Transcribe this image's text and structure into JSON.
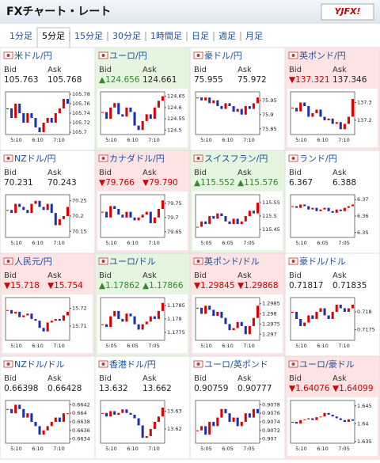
{
  "header": {
    "title": "FXチャート・レート",
    "logo": "YJFX!"
  },
  "tabs": [
    "1分足",
    "5分足",
    "15分足",
    "30分足",
    "1時間足",
    "日足",
    "週足",
    "月足"
  ],
  "selected_tab": 1,
  "labels": {
    "bid": "Bid",
    "ask": "Ask"
  },
  "panels": [
    {
      "name": "米ドル/円",
      "trend": "none",
      "bid": "105.763",
      "ask": "105.768",
      "chart": {
        "ylim": [
          105.695,
          105.785
        ],
        "yticks": [
          105.78,
          105.76,
          105.74,
          105.72,
          105.7
        ],
        "xticks": [
          "5:10",
          "6:10",
          "7:10"
        ],
        "values": [
          105.75,
          105.73,
          105.76,
          105.74,
          105.72,
          105.74,
          105.73,
          105.71,
          105.7,
          105.72,
          105.73,
          105.72,
          105.74,
          105.75,
          105.77,
          105.76
        ]
      }
    },
    {
      "name": "ユーロ/円",
      "trend": "up",
      "bid": "▲124.656",
      "ask": "124.661",
      "chart": {
        "ylim": [
          124.48,
          124.67
        ],
        "yticks": [
          124.65,
          124.6,
          124.55,
          124.5
        ],
        "xticks": [
          "5:10",
          "6:10",
          "7:10"
        ],
        "values": [
          124.58,
          124.55,
          124.6,
          124.62,
          124.57,
          124.56,
          124.6,
          124.58,
          124.52,
          124.5,
          124.54,
          124.57,
          124.55,
          124.6,
          124.63,
          124.65
        ]
      }
    },
    {
      "name": "豪ドル/円",
      "trend": "none",
      "bid": "75.955",
      "ask": "75.972",
      "chart": {
        "ylim": [
          75.83,
          75.98
        ],
        "yticks": [
          75.95,
          75.9,
          75.85
        ],
        "xticks": [
          "5:10",
          "6:10",
          "7:10"
        ],
        "values": [
          75.96,
          75.95,
          75.96,
          75.94,
          75.95,
          75.93,
          75.92,
          75.94,
          75.93,
          75.91,
          75.92,
          75.9,
          75.93,
          75.92,
          75.94,
          75.96
        ]
      }
    },
    {
      "name": "英ポンド/円",
      "trend": "down",
      "bid": "▼137.321",
      "ask": "137.346",
      "chart": {
        "ylim": [
          137.12,
          137.36
        ],
        "yticks": [
          137.3,
          137.2
        ],
        "xticks": [
          "5:10",
          "6:10",
          "7:10"
        ],
        "values": [
          137.27,
          137.25,
          137.3,
          137.28,
          137.22,
          137.24,
          137.26,
          137.22,
          137.2,
          137.21,
          137.18,
          137.19,
          137.15,
          137.18,
          137.22,
          137.32
        ]
      }
    },
    {
      "name": "NZドル/円",
      "trend": "none",
      "bid": "70.231",
      "ask": "70.243",
      "chart": {
        "ylim": [
          70.13,
          70.27
        ],
        "yticks": [
          70.25,
          70.2,
          70.15
        ],
        "xticks": [
          "5:10",
          "6:10",
          "7:10"
        ],
        "values": [
          70.22,
          70.21,
          70.24,
          70.23,
          70.22,
          70.21,
          70.24,
          70.25,
          70.23,
          70.22,
          70.24,
          70.21,
          70.17,
          70.19,
          70.2,
          70.23
        ]
      }
    },
    {
      "name": "カナダドル/円",
      "trend": "down",
      "bid": "▼79.766",
      "ask": "▼79.790",
      "chart": {
        "ylim": [
          79.63,
          79.78
        ],
        "yticks": [
          79.75,
          79.7,
          79.65
        ],
        "xticks": [
          "5:10",
          "6:10",
          "7:10"
        ],
        "values": [
          79.72,
          79.7,
          79.74,
          79.73,
          79.71,
          79.7,
          79.72,
          79.7,
          79.69,
          79.7,
          79.71,
          79.72,
          79.68,
          79.7,
          79.73,
          79.76
        ]
      }
    },
    {
      "name": "スイスフラン/円",
      "trend": "up",
      "bid": "▲115.552",
      "ask": "▲115.576",
      "chart": {
        "ylim": [
          115.42,
          115.58
        ],
        "yticks": [
          115.55,
          115.5,
          115.45
        ],
        "xticks": [
          "5:05",
          "6:05",
          "7:05"
        ],
        "values": [
          115.46,
          115.48,
          115.47,
          115.5,
          115.49,
          115.51,
          115.5,
          115.48,
          115.47,
          115.49,
          115.47,
          115.48,
          115.5,
          115.52,
          115.51,
          115.55
        ]
      }
    },
    {
      "name": "ランド/円",
      "trend": "none",
      "bid": "6.367",
      "ask": "6.388",
      "chart": {
        "ylim": [
          6.347,
          6.373
        ],
        "yticks": [
          6.37,
          6.36,
          6.35
        ],
        "xticks": [
          "5:10",
          "6:05",
          "7:05"
        ],
        "values": [
          6.366,
          6.365,
          6.367,
          6.366,
          6.364,
          6.365,
          6.363,
          6.364,
          6.365,
          6.363,
          6.362,
          6.364,
          6.363,
          6.365,
          6.366,
          6.367
        ]
      }
    },
    {
      "name": "人民元/円",
      "trend": "down",
      "bid": "▼15.718",
      "ask": "▼15.754",
      "chart": {
        "ylim": [
          15.702,
          15.726
        ],
        "yticks": [
          15.72,
          15.71
        ],
        "xticks": [
          "5:10",
          "6:10",
          "7:10"
        ],
        "values": [
          15.719,
          15.717,
          15.718,
          15.715,
          15.716,
          15.717,
          15.714,
          15.713,
          15.709,
          15.707,
          15.712,
          15.713,
          15.714,
          15.713,
          15.716,
          15.718
        ]
      }
    },
    {
      "name": "ユーロ/ドル",
      "trend": "up",
      "bid": "▲1.17862",
      "ask": "▲1.17866",
      "chart": {
        "ylim": [
          1.1772,
          1.1788
        ],
        "yticks": [
          1.1785,
          1.178,
          1.1775
        ],
        "xticks": [
          "5:05",
          "6:05",
          "7:05"
        ],
        "values": [
          1.1778,
          1.1777,
          1.1781,
          1.1783,
          1.178,
          1.1779,
          1.1782,
          1.1781,
          1.1778,
          1.1776,
          1.1778,
          1.1779,
          1.1781,
          1.178,
          1.1783,
          1.1786
        ]
      }
    },
    {
      "name": "英ポンド/ドル",
      "trend": "down",
      "bid": "▼1.29845",
      "ask": "▼1.29868",
      "chart": {
        "ylim": [
          1.2967,
          1.2988
        ],
        "yticks": [
          1.2985,
          1.298,
          1.2975,
          1.297
        ],
        "xticks": [
          "5:10",
          "6:10",
          "7:10"
        ],
        "values": [
          1.2983,
          1.298,
          1.2984,
          1.2982,
          1.2979,
          1.2981,
          1.2978,
          1.2975,
          1.2972,
          1.2973,
          1.2976,
          1.2974,
          1.297,
          1.2974,
          1.2978,
          1.2984
        ]
      }
    },
    {
      "name": "豪ドル/ドル",
      "trend": "none",
      "bid": "0.71817",
      "ask": "0.71835",
      "chart": {
        "ylim": [
          0.7172,
          0.7184
        ],
        "yticks": [
          0.718,
          0.7175
        ],
        "xticks": [
          "5:10",
          "6:10",
          "7:10"
        ],
        "values": [
          0.718,
          0.7178,
          0.7176,
          0.7177,
          0.7179,
          0.7178,
          0.718,
          0.7181,
          0.7179,
          0.7178,
          0.718,
          0.7182,
          0.7181,
          0.718,
          0.7181,
          0.7182
        ]
      }
    },
    {
      "name": "NZドル/ドル",
      "trend": "none",
      "bid": "0.66398",
      "ask": "0.66428",
      "chart": {
        "ylim": [
          0.6633,
          0.6643
        ],
        "yticks": [
          0.6642,
          0.664,
          0.6638,
          0.6636,
          0.6634
        ],
        "xticks": [
          "5:10",
          "6:10",
          "7:10"
        ],
        "values": [
          0.6641,
          0.664,
          0.6642,
          0.6641,
          0.6639,
          0.664,
          0.6638,
          0.6637,
          0.6635,
          0.6636,
          0.6637,
          0.6638,
          0.6639,
          0.6638,
          0.664,
          0.664
        ]
      }
    },
    {
      "name": "香港ドル/円",
      "trend": "none",
      "bid": "13.632",
      "ask": "13.662",
      "chart": {
        "ylim": [
          13.612,
          13.636
        ],
        "yticks": [
          13.63,
          13.62
        ],
        "xticks": [
          "5:10",
          "6:10",
          "7:10"
        ],
        "values": [
          13.629,
          13.627,
          13.63,
          13.628,
          13.629,
          13.631,
          13.629,
          13.628,
          13.626,
          13.622,
          13.615,
          13.616,
          13.62,
          13.624,
          13.627,
          13.632
        ]
      }
    },
    {
      "name": "ユーロ/英ポンド",
      "trend": "none",
      "bid": "0.90759",
      "ask": "0.90777",
      "chart": {
        "ylim": [
          0.9069,
          0.9079
        ],
        "yticks": [
          0.9078,
          0.9076,
          0.9074,
          0.9072,
          0.907
        ],
        "xticks": [
          "5:05",
          "6:05",
          "7:05"
        ],
        "values": [
          0.9072,
          0.9073,
          0.9071,
          0.9074,
          0.9073,
          0.9075,
          0.9077,
          0.9076,
          0.9074,
          0.9075,
          0.9073,
          0.9074,
          0.9076,
          0.9075,
          0.9077,
          0.9076
        ]
      }
    },
    {
      "name": "ユーロ/豪ドル",
      "trend": "down",
      "bid": "▼1.64076",
      "ask": "▼1.64099",
      "chart": {
        "ylim": [
          1.6345,
          1.6465
        ],
        "yticks": [
          1.645,
          1.64,
          1.635
        ],
        "xticks": [
          "5:10",
          "6:10",
          "7:05"
        ],
        "values": [
          1.6405,
          1.64,
          1.641,
          1.6412,
          1.6415,
          1.641,
          1.6418,
          1.642,
          1.643,
          1.6425,
          1.642,
          1.6415,
          1.641,
          1.6405,
          1.6412,
          1.6408
        ]
      }
    }
  ]
}
